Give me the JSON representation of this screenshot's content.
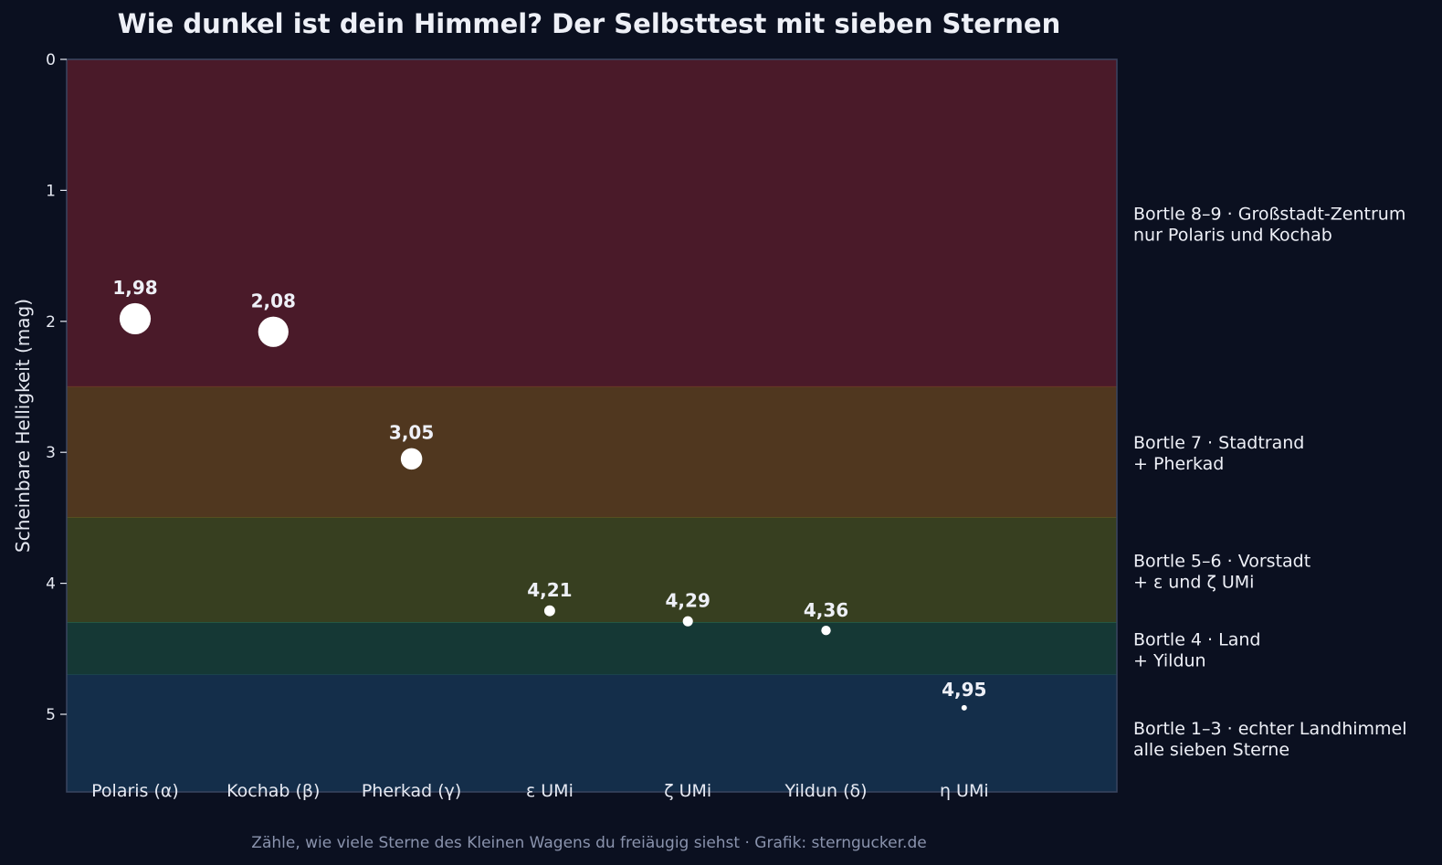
{
  "chart_data": {
    "type": "scatter",
    "title": "Wie dunkel ist dein Himmel? Der Selbsttest mit sieben Sternen",
    "ylabel": "Scheinbare Helligkeit (mag)",
    "xlabel": "",
    "ylim": [
      0,
      5.6
    ],
    "y_inverted": true,
    "yticks": [
      "0",
      "1",
      "2",
      "3",
      "4",
      "5"
    ],
    "ytick_values": [
      0,
      1,
      2,
      3,
      4,
      5
    ],
    "grid": false,
    "points": [
      {
        "label": "Polaris (α)",
        "magnitude": 1.98,
        "value_label": "1,98"
      },
      {
        "label": "Kochab (β)",
        "magnitude": 2.08,
        "value_label": "2,08"
      },
      {
        "label": "Pherkad (γ)",
        "magnitude": 3.05,
        "value_label": "3,05"
      },
      {
        "label": "ε UMi",
        "magnitude": 4.21,
        "value_label": "4,21"
      },
      {
        "label": "ζ UMi",
        "magnitude": 4.29,
        "value_label": "4,29"
      },
      {
        "label": "Yildun (δ)",
        "magnitude": 4.36,
        "value_label": "4,36"
      },
      {
        "label": "η UMi",
        "magnitude": 4.95,
        "value_label": "4,95"
      }
    ],
    "zones": [
      {
        "from": 0,
        "to": 2.5,
        "color": "#4a1a29",
        "border": "#7a3a2a",
        "line1": "Bortle 8–9 · Großstadt-Zentrum",
        "line2": "nur Polaris und Kochab"
      },
      {
        "from": 2.5,
        "to": 3.5,
        "color": "#50371f",
        "border": "#5c5a22",
        "line1": "Bortle 7 · Stadtrand",
        "line2": "+ Pherkad"
      },
      {
        "from": 3.5,
        "to": 4.3,
        "color": "#373f20",
        "border": "#2d6a4a",
        "line1": "Bortle 5–6 · Vorstadt",
        "line2": "+ ε und ζ UMi"
      },
      {
        "from": 4.3,
        "to": 4.7,
        "color": "#153835",
        "border": "#1f4a5a",
        "line1": "Bortle 4 · Land",
        "line2": "+ Yildun"
      },
      {
        "from": 4.7,
        "to": 5.6,
        "color": "#142e4a",
        "border": "#2a3a55",
        "line1": "Bortle 1–3 · echter Landhimmel",
        "line2": "alle sieben Sterne"
      }
    ],
    "footnote": "Zähle, wie viele Sterne des Kleinen Wagens du freiäugig siehst · Grafik: sterngucker.de",
    "colors": {
      "background": "#0b1020",
      "star": "#ffffff",
      "text": "#e6e9f2",
      "footnote": "#8a93ad",
      "axis": "#3a4560"
    }
  }
}
